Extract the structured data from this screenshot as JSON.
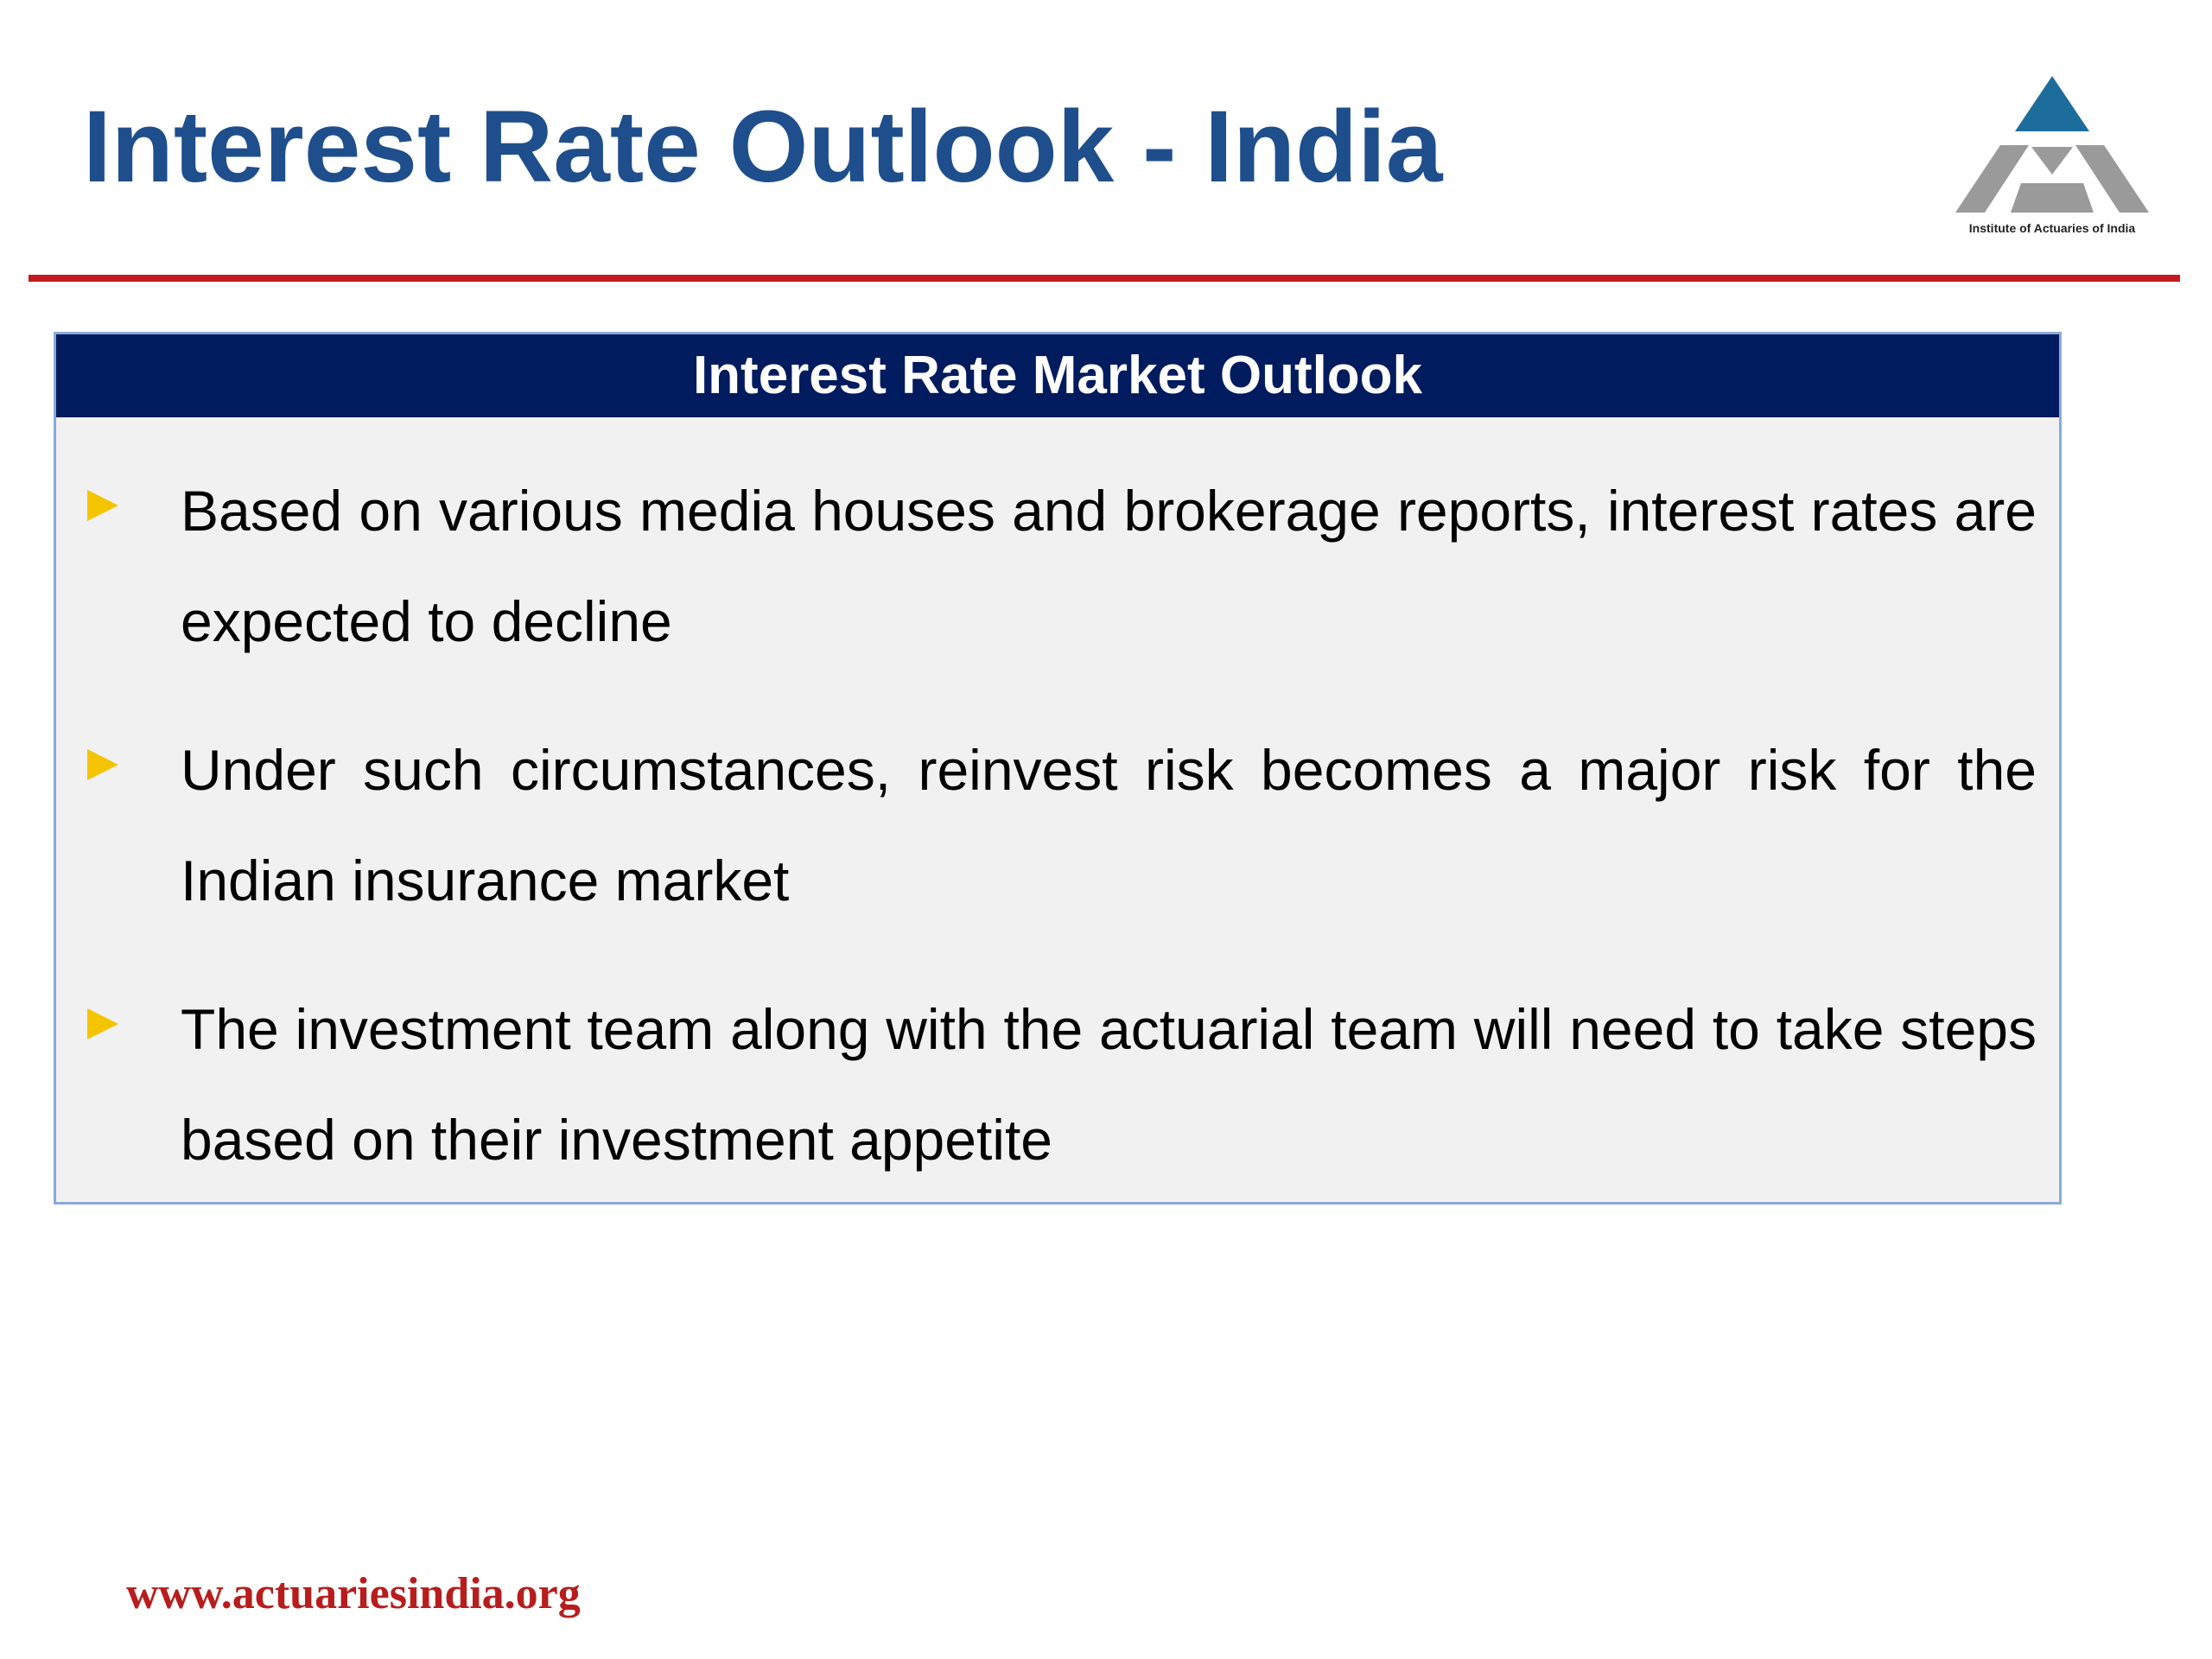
{
  "slide": {
    "title": "Interest Rate Outlook - India"
  },
  "logo": {
    "icon": "actuaries-triangle-logo-icon",
    "caption": "Institute of Actuaries of India",
    "colors": {
      "apex": "#1c6d9c",
      "base": "#9a9a9a"
    }
  },
  "panel": {
    "header": "Interest Rate Market Outlook",
    "bullets": [
      "Based on various media houses and brokerage reports, interest rates are expected to decline",
      "Under such circumstances, reinvest risk becomes a major risk for the Indian insurance market",
      "The investment team along with the actuarial team will need to take steps based on their investment appetite"
    ]
  },
  "footer": {
    "url": "www.actuariesindia.org"
  },
  "colors": {
    "title": "#1f4e8c",
    "rule": "#c41a1f",
    "panel_header_bg": "#001b5e",
    "panel_bg": "#f1f1f1",
    "panel_border": "#8aaad8",
    "bullet_marker": "#f5c400",
    "url": "#b81d1d"
  }
}
